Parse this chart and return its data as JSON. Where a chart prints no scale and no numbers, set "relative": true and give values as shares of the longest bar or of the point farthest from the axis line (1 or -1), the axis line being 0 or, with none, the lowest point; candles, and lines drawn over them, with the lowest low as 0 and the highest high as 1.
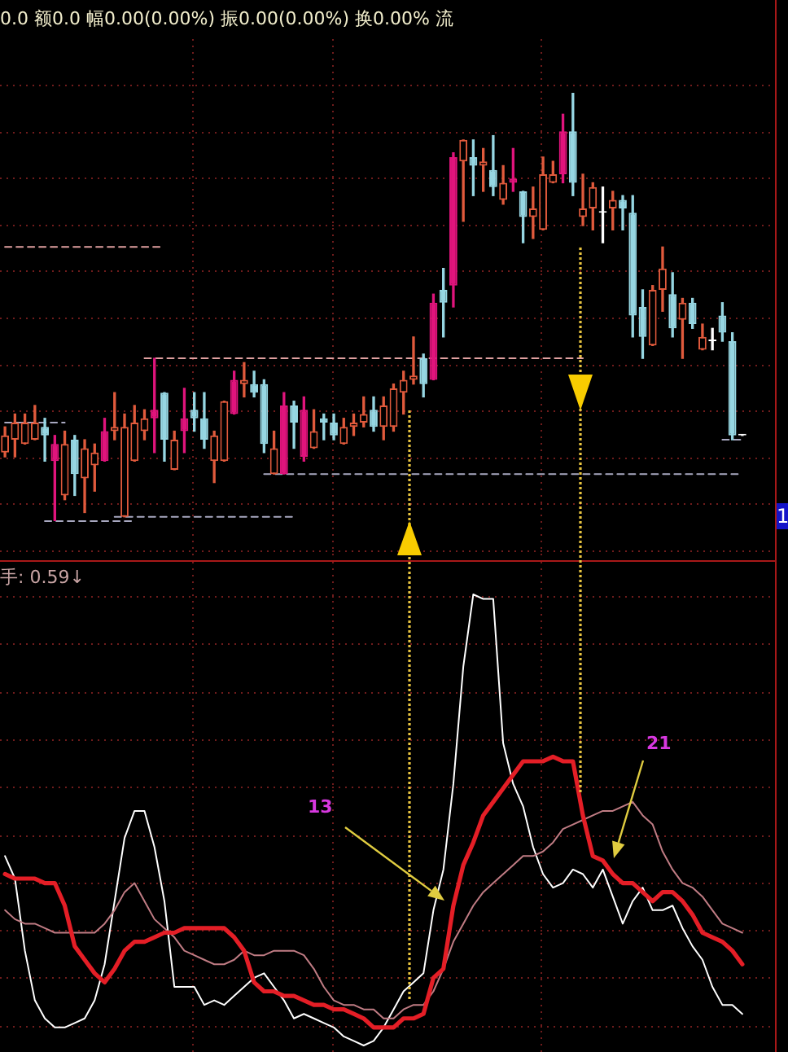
{
  "chart_data": [
    {
      "type": "candlestick",
      "title": "0.0 额0.0 幅0.00(0.00%) 振0.00(0.00%) 换0.00% 流",
      "relative": true,
      "tick_labels": false,
      "grid": true,
      "categories": [
        null,
        null,
        null,
        null,
        null,
        null,
        null,
        null,
        null,
        null,
        null,
        null,
        null,
        null,
        null,
        null,
        null,
        null,
        null,
        null,
        null,
        null,
        null,
        null,
        null,
        null,
        null,
        null,
        null,
        null,
        null,
        null,
        null,
        null,
        null,
        null,
        null,
        null,
        null,
        null,
        null,
        null,
        null,
        null,
        null,
        null,
        null,
        null,
        null,
        null,
        null,
        null,
        null,
        null,
        null,
        null,
        null,
        null,
        null,
        null,
        null,
        null,
        null,
        null,
        null,
        null,
        null,
        null,
        null,
        null,
        null,
        null,
        null,
        null,
        null
      ],
      "ohlc": [
        [
          0.16,
          0.22,
          0.15,
          0.2
        ],
        [
          0.19,
          0.25,
          0.15,
          0.23
        ],
        [
          0.18,
          0.25,
          0.18,
          0.23
        ],
        [
          0.19,
          0.27,
          0.19,
          0.23
        ],
        [
          0.22,
          0.24,
          0.14,
          0.2
        ],
        [
          0.14,
          0.2,
          0,
          0.18
        ],
        [
          0.06,
          0.21,
          0.05,
          0.18
        ],
        [
          0.19,
          0.2,
          0.06,
          0.11
        ],
        [
          0.1,
          0.19,
          0.02,
          0.17
        ],
        [
          0.13,
          0.18,
          0.07,
          0.16
        ],
        [
          0.14,
          0.24,
          0.14,
          0.21
        ],
        [
          0.21,
          0.3,
          0.19,
          0.22
        ],
        [
          0.01,
          0.25,
          0.01,
          0.22
        ],
        [
          0.14,
          0.27,
          0.14,
          0.23
        ],
        [
          0.21,
          0.26,
          0.19,
          0.24
        ],
        [
          0.24,
          0.38,
          0.16,
          0.26
        ],
        [
          0.3,
          0.3,
          0.14,
          0.19
        ],
        [
          0.12,
          0.21,
          0.12,
          0.19
        ],
        [
          0.21,
          0.31,
          0.16,
          0.24
        ],
        [
          0.26,
          0.3,
          0.21,
          0.24
        ],
        [
          0.24,
          0.3,
          0.17,
          0.19
        ],
        [
          0.14,
          0.21,
          0.09,
          0.2
        ],
        [
          0.14,
          0.28,
          0.14,
          0.28
        ],
        [
          0.25,
          0.35,
          0.25,
          0.33
        ],
        [
          0.32,
          0.37,
          0.29,
          0.33
        ],
        [
          0.32,
          0.35,
          0.29,
          0.3
        ],
        [
          0.32,
          0.33,
          0.16,
          0.18
        ],
        [
          0.11,
          0.21,
          0.11,
          0.17
        ],
        [
          0.11,
          0.3,
          0.11,
          0.27
        ],
        [
          0.27,
          0.28,
          0.17,
          0.23
        ],
        [
          0.15,
          0.29,
          0.14,
          0.26
        ],
        [
          0.17,
          0.26,
          0.17,
          0.21
        ],
        [
          0.24,
          0.25,
          0.19,
          0.23
        ],
        [
          0.23,
          0.25,
          0.19,
          0.2
        ],
        [
          0.18,
          0.24,
          0.18,
          0.22
        ],
        [
          0.22,
          0.25,
          0.2,
          0.23
        ],
        [
          0.23,
          0.29,
          0.22,
          0.25
        ],
        [
          0.26,
          0.29,
          0.21,
          0.22
        ],
        [
          0.22,
          0.29,
          0.19,
          0.27
        ],
        [
          0.22,
          0.32,
          0.21,
          0.31
        ],
        [
          0.3,
          0.35,
          0.25,
          0.33
        ],
        [
          0.33,
          0.43,
          0.32,
          0.34
        ],
        [
          0.38,
          0.39,
          0.29,
          0.32
        ],
        [
          0.33,
          0.53,
          0.33,
          0.51
        ],
        [
          0.54,
          0.59,
          0.43,
          0.51
        ],
        [
          0.55,
          0.86,
          0.5,
          0.85
        ],
        [
          0.84,
          0.89,
          0.7,
          0.89
        ],
        [
          0.85,
          0.89,
          0.76,
          0.83
        ],
        [
          0.83,
          0.87,
          0.77,
          0.84
        ],
        [
          0.82,
          0.9,
          0.76,
          0.78
        ],
        [
          0.75,
          0.83,
          0.74,
          0.79
        ],
        [
          0.79,
          0.87,
          0.77,
          0.8
        ],
        [
          0.77,
          0.77,
          0.65,
          0.71
        ],
        [
          0.71,
          0.78,
          0.66,
          0.73
        ],
        [
          0.68,
          0.85,
          0.68,
          0.81
        ],
        [
          0.79,
          0.84,
          0.79,
          0.81
        ],
        [
          0.81,
          0.95,
          0.79,
          0.91
        ],
        [
          0.91,
          1,
          0.76,
          0.79
        ],
        [
          0.71,
          0.81,
          0.69,
          0.73
        ],
        [
          0.73,
          0.79,
          0.68,
          0.78
        ],
        [
          0.72,
          0.78,
          0.65,
          0.72
        ],
        [
          0.73,
          0.77,
          0.68,
          0.75
        ],
        [
          0.75,
          0.76,
          0.68,
          0.73
        ],
        [
          0.72,
          0.76,
          0.43,
          0.48
        ],
        [
          0.5,
          0.54,
          0.38,
          0.43
        ],
        [
          0.41,
          0.55,
          0.41,
          0.54
        ],
        [
          0.54,
          0.64,
          0.49,
          0.59
        ],
        [
          0.53,
          0.58,
          0.43,
          0.45
        ],
        [
          0.47,
          0.52,
          0.38,
          0.51
        ],
        [
          0.51,
          0.52,
          0.45,
          0.46
        ],
        [
          0.4,
          0.46,
          0.4,
          0.43
        ],
        [
          0.42,
          0.45,
          0.4,
          0.42
        ],
        [
          0.48,
          0.51,
          0.42,
          0.44
        ],
        [
          0.42,
          0.44,
          0.19,
          0.2
        ],
        [
          0.2,
          0.2,
          0.2,
          0.2
        ]
      ],
      "color": "#e05a3c",
      "colors": [
        "#e05a3c",
        "#e05a3c",
        "#e05a3c",
        "#e05a3c",
        "#96d6e2",
        "#e0147c",
        "#e05a3c",
        "#96d6e2",
        "#e05a3c",
        "#e05a3c",
        "#e0147c",
        "#e05a3c",
        "#e05a3c",
        "#e05a3c",
        "#e05a3c",
        "#e0147c",
        "#96d6e2",
        "#e05a3c",
        "#e0147c",
        "#96d6e2",
        "#96d6e2",
        "#e05a3c",
        "#e05a3c",
        "#e0147c",
        "#e05a3c",
        "#96d6e2",
        "#96d6e2",
        "#e05a3c",
        "#e0147c",
        "#96d6e2",
        "#e0147c",
        "#e05a3c",
        "#96d6e2",
        "#96d6e2",
        "#e05a3c",
        "#e05a3c",
        "#e05a3c",
        "#96d6e2",
        "#e05a3c",
        "#e05a3c",
        "#e05a3c",
        "#e05a3c",
        "#96d6e2",
        "#e0147c",
        "#96d6e2",
        "#e0147c",
        "#e05a3c",
        "#96d6e2",
        "#e05a3c",
        "#96d6e2",
        "#e05a3c",
        "#e0147c",
        "#96d6e2",
        "#e05a3c",
        "#e05a3c",
        "#e05a3c",
        "#e0147c",
        "#96d6e2",
        "#e05a3c",
        "#e05a3c",
        "#ffffff",
        "#e05a3c",
        "#96d6e2",
        "#96d6e2",
        "#96d6e2",
        "#e05a3c",
        "#e05a3c",
        "#96d6e2",
        "#e05a3c",
        "#96d6e2",
        "#e05a3c",
        "#ffffff",
        "#96d6e2",
        "#96d6e2",
        "#ffffff"
      ],
      "series": [
        {
          "type": "line",
          "line_style": "dashed",
          "color": "#e0a0a0",
          "values": [
            0.64,
            0.64,
            0.64,
            0.64,
            0.64,
            0.64,
            0.64,
            0.64,
            0.64,
            0.64,
            0.64,
            0.64,
            0.64,
            0.64,
            0.64,
            0.64,
            0.64,
            null,
            null,
            null,
            null,
            null,
            null,
            null,
            null,
            null,
            null,
            null,
            null,
            null,
            null,
            null,
            null,
            null,
            null,
            null,
            null,
            null,
            null,
            null,
            null,
            null,
            null,
            null,
            null,
            null,
            null,
            null,
            null,
            null,
            null,
            null,
            null,
            null,
            null,
            null,
            null,
            null,
            null,
            null,
            null,
            null,
            null,
            null,
            null,
            null,
            null,
            null,
            null,
            null,
            null,
            null,
            null,
            null,
            null
          ]
        },
        {
          "type": "line",
          "line_style": "dashed",
          "color": "#e0a0a0",
          "values": [
            null,
            null,
            null,
            null,
            null,
            null,
            null,
            null,
            null,
            null,
            null,
            null,
            null,
            null,
            0.38,
            0.38,
            0.38,
            0.38,
            0.38,
            0.38,
            0.38,
            0.38,
            0.38,
            0.38,
            0.38,
            0.38,
            0.38,
            0.38,
            0.38,
            0.38,
            0.38,
            0.38,
            0.38,
            0.38,
            0.38,
            0.38,
            0.38,
            0.38,
            0.38,
            0.38,
            0.38,
            0.38,
            0.38,
            0.38,
            0.38,
            0.38,
            0.38,
            0.38,
            0.38,
            0.38,
            0.38,
            0.38,
            0.38,
            0.38,
            0.38,
            0.38,
            0.38,
            0.38,
            0.38,
            null,
            null,
            null,
            null,
            null,
            null,
            null,
            null,
            null,
            null,
            null,
            null,
            null,
            null,
            null,
            null
          ]
        },
        {
          "type": "line",
          "line_style": "dashed",
          "color": "#a8a8c0",
          "values": [
            0.23,
            0.23,
            0.23,
            0.23,
            0.23,
            0.23,
            0.23,
            null,
            null,
            null,
            null,
            null,
            null,
            null,
            null,
            null,
            null,
            null,
            null,
            null,
            null,
            null,
            null,
            null,
            null,
            null,
            null,
            null,
            null,
            null,
            null,
            null,
            null,
            null,
            null,
            null,
            null,
            null,
            null,
            null,
            null,
            null,
            null,
            null,
            null,
            null,
            null,
            null,
            null,
            null,
            null,
            null,
            null,
            null,
            null,
            null,
            null,
            null,
            null,
            null,
            null,
            null,
            null,
            null,
            null,
            null,
            null,
            null,
            null,
            null,
            null,
            null,
            null,
            null,
            null
          ]
        },
        {
          "type": "line",
          "line_style": "dashed",
          "color": "#a8a8c0",
          "values": [
            null,
            null,
            null,
            null,
            0,
            0,
            0,
            0,
            0,
            0,
            0,
            0,
            0,
            0,
            null,
            null,
            null,
            null,
            null,
            null,
            null,
            null,
            null,
            null,
            null,
            null,
            null,
            null,
            null,
            null,
            null,
            null,
            null,
            null,
            null,
            null,
            null,
            null,
            null,
            null,
            null,
            null,
            null,
            null,
            null,
            null,
            null,
            null,
            null,
            null,
            null,
            null,
            null,
            null,
            null,
            null,
            null,
            null,
            null,
            null,
            null,
            null,
            null,
            null,
            null,
            null,
            null,
            null,
            null,
            null,
            null,
            null,
            null,
            null,
            null
          ]
        },
        {
          "type": "line",
          "line_style": "dashed",
          "color": "#a8a8c0",
          "values": [
            null,
            null,
            null,
            null,
            null,
            null,
            null,
            null,
            null,
            null,
            null,
            0.01,
            0.01,
            0.01,
            0.01,
            0.01,
            0.01,
            0.01,
            0.01,
            0.01,
            0.01,
            0.01,
            0.01,
            0.01,
            0.01,
            0.01,
            0.01,
            0.01,
            0.01,
            0.01,
            null,
            null,
            null,
            null,
            null,
            null,
            null,
            null,
            null,
            null,
            null,
            null,
            null,
            null,
            null,
            null,
            null,
            null,
            null,
            null,
            null,
            null,
            null,
            null,
            null,
            null,
            null,
            null,
            null,
            null,
            null,
            null,
            null,
            null,
            null,
            null,
            null,
            null,
            null,
            null,
            null,
            null,
            null,
            null,
            null
          ]
        },
        {
          "type": "line",
          "line_style": "dashed",
          "color": "#a8a8c0",
          "values": [
            null,
            null,
            null,
            null,
            null,
            null,
            null,
            null,
            null,
            null,
            null,
            null,
            null,
            null,
            null,
            null,
            null,
            null,
            null,
            null,
            null,
            null,
            null,
            null,
            null,
            null,
            0.11,
            0.11,
            0.11,
            0.11,
            0.11,
            0.11,
            0.11,
            0.11,
            0.11,
            0.11,
            0.11,
            0.11,
            0.11,
            0.11,
            0.11,
            0.11,
            0.11,
            0.11,
            0.11,
            0.11,
            0.11,
            0.11,
            0.11,
            0.11,
            0.11,
            0.11,
            0.11,
            0.11,
            0.11,
            0.11,
            0.11,
            0.11,
            0.11,
            0.11,
            0.11,
            0.11,
            0.11,
            0.11,
            0.11,
            0.11,
            0.11,
            0.11,
            0.11,
            0.11,
            0.11,
            0.11,
            0.11,
            0.11,
            0.11
          ]
        },
        {
          "type": "line",
          "line_style": "dashed",
          "color": "#a8a8c0",
          "values": [
            null,
            null,
            null,
            null,
            null,
            null,
            null,
            null,
            null,
            null,
            null,
            null,
            null,
            null,
            null,
            null,
            null,
            null,
            null,
            null,
            null,
            null,
            null,
            null,
            null,
            null,
            null,
            null,
            null,
            null,
            null,
            null,
            null,
            null,
            null,
            null,
            null,
            null,
            null,
            null,
            null,
            null,
            null,
            null,
            null,
            null,
            null,
            null,
            null,
            null,
            null,
            null,
            null,
            null,
            null,
            null,
            null,
            null,
            null,
            null,
            null,
            null,
            null,
            null,
            null,
            null,
            null,
            null,
            null,
            null,
            null,
            null,
            0.19,
            0.19,
            0.19
          ]
        }
      ],
      "annotations": [
        "1"
      ]
    },
    {
      "type": "line",
      "title": "手: 0.59↓",
      "relative": true,
      "tick_labels": false,
      "grid": true,
      "categories": [
        null,
        null,
        null,
        null,
        null,
        null,
        null,
        null,
        null,
        null,
        null,
        null,
        null,
        null,
        null,
        null,
        null,
        null,
        null,
        null,
        null,
        null,
        null,
        null,
        null,
        null,
        null,
        null,
        null,
        null,
        null,
        null,
        null,
        null,
        null,
        null,
        null,
        null,
        null,
        null,
        null,
        null,
        null,
        null,
        null,
        null,
        null,
        null,
        null,
        null,
        null,
        null,
        null,
        null,
        null,
        null,
        null,
        null,
        null,
        null,
        null,
        null,
        null,
        null,
        null,
        null,
        null,
        null,
        null,
        null,
        null,
        null,
        null,
        null,
        null
      ],
      "series": [
        {
          "color": "#ffffff",
          "values": [
            0.42,
            0.37,
            0.21,
            0.1,
            0.06,
            0.04,
            0.04,
            0.05,
            0.06,
            0.1,
            0.18,
            0.32,
            0.46,
            0.52,
            0.52,
            0.44,
            0.32,
            0.13,
            0.13,
            0.13,
            0.09,
            0.1,
            0.09,
            0.11,
            0.13,
            0.15,
            0.16,
            0.13,
            0.1,
            0.06,
            0.07,
            0.06,
            0.05,
            0.04,
            0.02,
            0.01,
            0,
            0.01,
            0.04,
            0.08,
            0.12,
            0.14,
            0.16,
            0.3,
            0.39,
            0.58,
            0.84,
            1,
            0.99,
            0.99,
            0.67,
            0.58,
            0.53,
            0.44,
            0.38,
            0.35,
            0.36,
            0.39,
            0.38,
            0.35,
            0.39,
            0.33,
            0.27,
            0.32,
            0.35,
            0.3,
            0.3,
            0.31,
            0.26,
            0.22,
            0.19,
            0.13,
            0.09,
            0.09,
            0.07
          ]
        },
        {
          "color": "#c07c84",
          "values": [
            0.3,
            0.28,
            0.27,
            0.27,
            0.26,
            0.25,
            0.25,
            0.25,
            0.25,
            0.25,
            0.27,
            0.3,
            0.34,
            0.36,
            0.32,
            0.28,
            0.26,
            0.24,
            0.21,
            0.2,
            0.19,
            0.18,
            0.18,
            0.19,
            0.21,
            0.2,
            0.2,
            0.21,
            0.21,
            0.21,
            0.2,
            0.17,
            0.13,
            0.1,
            0.09,
            0.09,
            0.08,
            0.08,
            0.06,
            0.06,
            0.08,
            0.09,
            0.09,
            0.12,
            0.17,
            0.23,
            0.27,
            0.31,
            0.34,
            0.36,
            0.38,
            0.4,
            0.42,
            0.42,
            0.43,
            0.45,
            0.48,
            0.49,
            0.5,
            0.51,
            0.52,
            0.52,
            0.53,
            0.54,
            0.51,
            0.49,
            0.43,
            0.39,
            0.36,
            0.35,
            0.33,
            0.3,
            0.27,
            0.26,
            0.25
          ]
        },
        {
          "color": "#e41e26",
          "values": [
            0.38,
            0.37,
            0.37,
            0.37,
            0.36,
            0.36,
            0.31,
            0.22,
            0.19,
            0.16,
            0.14,
            0.17,
            0.21,
            0.23,
            0.23,
            0.24,
            0.25,
            0.25,
            0.26,
            0.26,
            0.26,
            0.26,
            0.26,
            0.24,
            0.21,
            0.14,
            0.12,
            0.12,
            0.11,
            0.11,
            0.1,
            0.09,
            0.09,
            0.08,
            0.08,
            0.07,
            0.06,
            0.04,
            0.04,
            0.04,
            0.06,
            0.06,
            0.07,
            0.15,
            0.17,
            0.31,
            0.4,
            0.45,
            0.51,
            0.54,
            0.57,
            0.6,
            0.63,
            0.63,
            0.63,
            0.64,
            0.63,
            0.63,
            0.51,
            0.42,
            0.41,
            0.38,
            0.36,
            0.36,
            0.34,
            0.32,
            0.34,
            0.34,
            0.32,
            0.29,
            0.25,
            0.24,
            0.23,
            0.21,
            0.18
          ]
        }
      ],
      "annotations": [
        "13",
        "21"
      ]
    }
  ]
}
